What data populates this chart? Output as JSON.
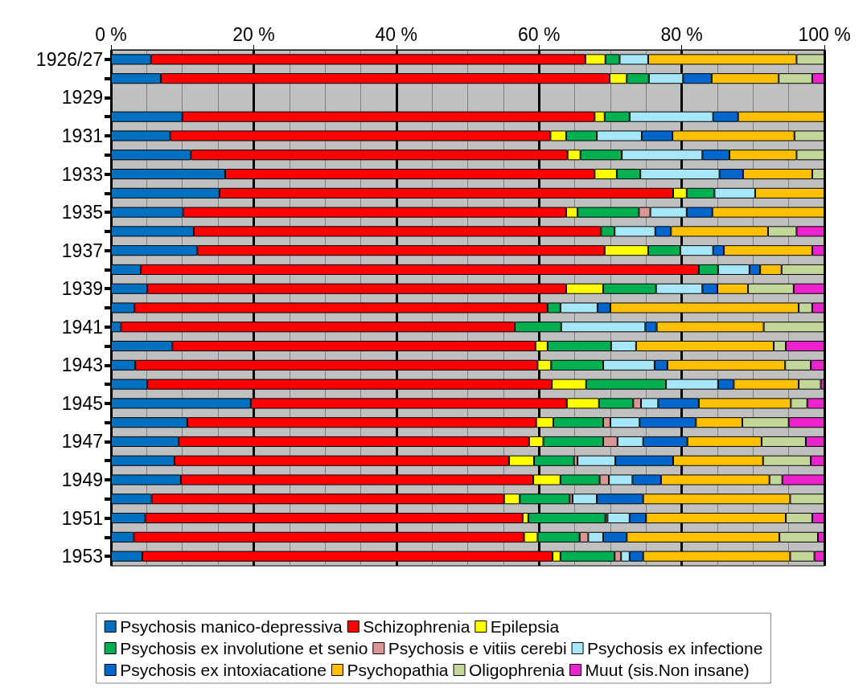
{
  "chart_data": {
    "type": "bar",
    "orientation": "horizontal",
    "stacked": true,
    "categories": [
      "1926/27",
      null,
      "1929",
      null,
      "1931",
      null,
      "1933",
      null,
      "1935",
      null,
      "1937",
      null,
      "1939",
      null,
      "1941",
      null,
      "1943",
      null,
      "1945",
      null,
      "1947",
      null,
      "1949",
      null,
      "1951",
      null,
      "1953"
    ],
    "xlim": [
      0,
      100
    ],
    "xticks": [
      {
        "value": 0,
        "label": "0 %"
      },
      {
        "value": 20,
        "label": "20 %"
      },
      {
        "value": 40,
        "label": "40 %"
      },
      {
        "value": 60,
        "label": "60 %"
      },
      {
        "value": 80,
        "label": "80 %"
      },
      {
        "value": 100,
        "label": "100 %"
      }
    ],
    "grid": "x",
    "legend": "bottom",
    "series": [
      {
        "name": "Psychosis manico-depressiva",
        "color": "#0070c0",
        "values": [
          5.6,
          7.0,
          null,
          10.0,
          8.3,
          11.2,
          16.0,
          15.2,
          10.1,
          11.6,
          12.1,
          4.2,
          5.1,
          3.3,
          1.4,
          8.6,
          3.4,
          5.1,
          19.6,
          10.7,
          9.5,
          8.9,
          9.8,
          5.7,
          4.8,
          3.2,
          4.4
        ]
      },
      {
        "name": "Schizophrenia",
        "color": "#ff0000",
        "values": [
          60.9,
          62.9,
          null,
          57.8,
          53.3,
          52.8,
          51.8,
          63.6,
          53.7,
          57.1,
          57.1,
          78.2,
          58.7,
          57.9,
          55.2,
          50.9,
          56.4,
          56.7,
          44.3,
          48.9,
          49.1,
          46.9,
          49.4,
          49.4,
          52.9,
          54.7,
          57.5
        ]
      },
      {
        "name": "Epilepsia",
        "color": "#ffff00",
        "values": [
          2.8,
          2.4,
          null,
          1.4,
          2.2,
          1.8,
          3.1,
          1.9,
          1.6,
          0,
          6.1,
          0,
          5.2,
          0,
          0,
          1.7,
          1.9,
          4.8,
          4.5,
          2.4,
          2.0,
          3.5,
          3.8,
          2.2,
          0.8,
          1.9,
          1.1
        ]
      },
      {
        "name": "Psychosis ex involutione et senio",
        "color": "#00b050",
        "values": [
          2.0,
          3.1,
          null,
          3.5,
          4.3,
          5.8,
          3.3,
          3.9,
          8.6,
          1.9,
          4.5,
          2.7,
          7.4,
          1.8,
          6.5,
          8.9,
          7.3,
          11.2,
          4.8,
          7.0,
          8.4,
          5.6,
          5.5,
          7.0,
          10.8,
          5.9,
          7.6
        ]
      },
      {
        "name": "Psychosis e vitiis cerebi",
        "color": "#d99694",
        "values": [
          0,
          0,
          null,
          0,
          0,
          0,
          0,
          0,
          1.6,
          0,
          0,
          0,
          0,
          0,
          0,
          0,
          0,
          0,
          1.1,
          1.0,
          2.0,
          0.5,
          1.3,
          0.4,
          0.3,
          1.2,
          0.9
        ]
      },
      {
        "name": "Psychosis ex infectione",
        "color": "#a6e8fa",
        "values": [
          4.0,
          4.8,
          null,
          11.7,
          6.3,
          11.3,
          11.1,
          5.7,
          5.1,
          5.7,
          4.6,
          4.4,
          6.5,
          5.2,
          11.8,
          3.5,
          7.2,
          7.3,
          2.4,
          4.1,
          3.6,
          5.3,
          3.3,
          3.4,
          3.1,
          2.1,
          1.2
        ]
      },
      {
        "name": "Psychosis ex intoxiacatione",
        "color": "#0066cc",
        "values": [
          0,
          4.0,
          null,
          3.5,
          4.3,
          3.8,
          3.3,
          0,
          3.6,
          2.2,
          1.5,
          1.5,
          2.1,
          1.8,
          1.6,
          0,
          1.8,
          2.2,
          5.7,
          7.9,
          6.2,
          8.1,
          4.0,
          6.5,
          2.3,
          3.3,
          1.9
        ]
      },
      {
        "name": "Psychopathia",
        "color": "#ffc000",
        "values": [
          20.8,
          9.4,
          null,
          12.1,
          17.1,
          9.4,
          9.7,
          9.7,
          15.7,
          13.6,
          12.4,
          3.0,
          4.3,
          26.4,
          15.0,
          19.3,
          16.5,
          9.1,
          12.9,
          6.5,
          10.4,
          12.6,
          15.2,
          20.6,
          19.6,
          21.4,
          20.6
        ]
      },
      {
        "name": "Oligophrenia",
        "color": "#c4d79b",
        "values": [
          3.9,
          4.7,
          null,
          0,
          4.2,
          3.9,
          1.7,
          0,
          0,
          4.0,
          0,
          6.0,
          6.4,
          1.9,
          8.5,
          1.7,
          3.6,
          3.1,
          2.3,
          6.5,
          6.2,
          6.7,
          1.8,
          4.8,
          3.7,
          5.4,
          3.4
        ]
      },
      {
        "name": "Muut (sis.Non insane)",
        "color": "#ee22cc",
        "values": [
          0,
          1.7,
          null,
          0,
          0,
          0,
          0,
          0,
          0,
          3.9,
          1.7,
          0,
          4.3,
          1.7,
          0,
          5.4,
          1.9,
          0.5,
          2.4,
          5.0,
          2.6,
          1.9,
          5.9,
          0,
          1.7,
          0.9,
          1.4
        ]
      }
    ]
  }
}
